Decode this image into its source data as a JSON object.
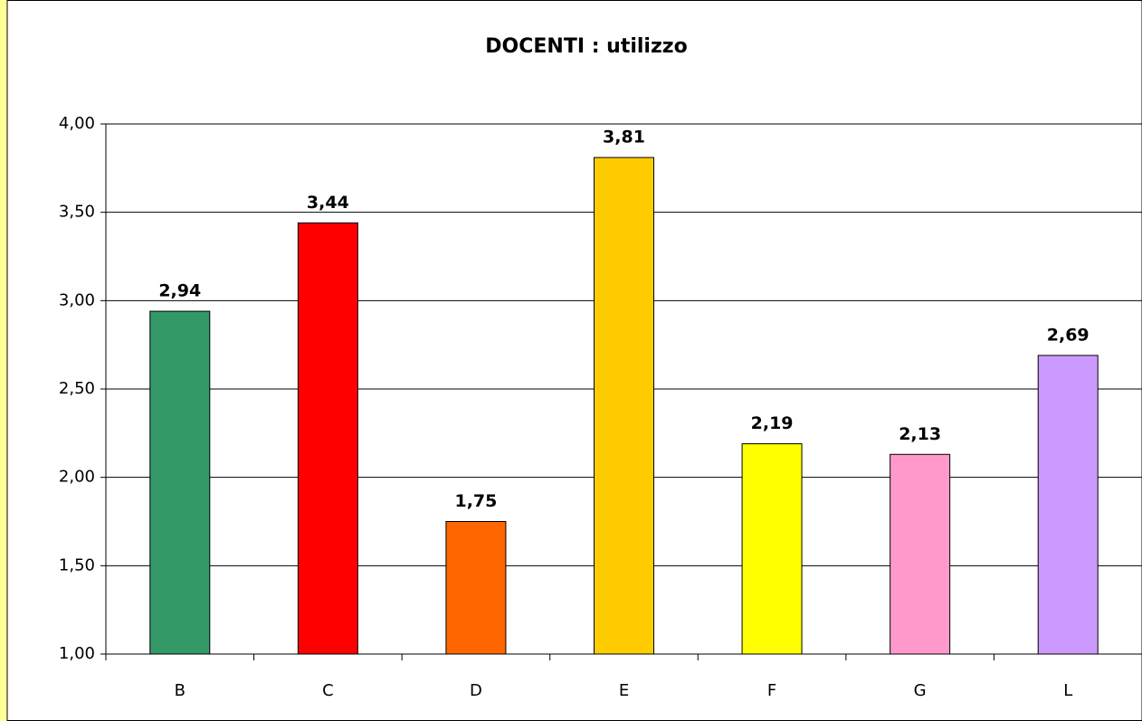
{
  "chart_data": {
    "type": "bar",
    "title": "DOCENTI : utilizzo",
    "categories": [
      "B",
      "C",
      "D",
      "E",
      "F",
      "G",
      "L"
    ],
    "values": [
      2.94,
      3.44,
      1.75,
      3.81,
      2.19,
      2.13,
      2.69
    ],
    "value_labels": [
      "2,94",
      "3,44",
      "1,75",
      "3,81",
      "2,19",
      "2,13",
      "2,69"
    ],
    "colors": [
      "#339966",
      "#ff0000",
      "#ff6600",
      "#ffcc00",
      "#ffff00",
      "#ff99cc",
      "#cc99ff"
    ],
    "ylim": [
      1,
      4
    ],
    "yticks": [
      {
        "value": 1,
        "label": "1,00"
      },
      {
        "value": 1.5,
        "label": "1,50"
      },
      {
        "value": 2,
        "label": "2,00"
      },
      {
        "value": 2.5,
        "label": "2,50"
      },
      {
        "value": 3,
        "label": "3,00"
      },
      {
        "value": 3.5,
        "label": "3,50"
      },
      {
        "value": 4,
        "label": "4,00"
      }
    ],
    "grid": true
  }
}
